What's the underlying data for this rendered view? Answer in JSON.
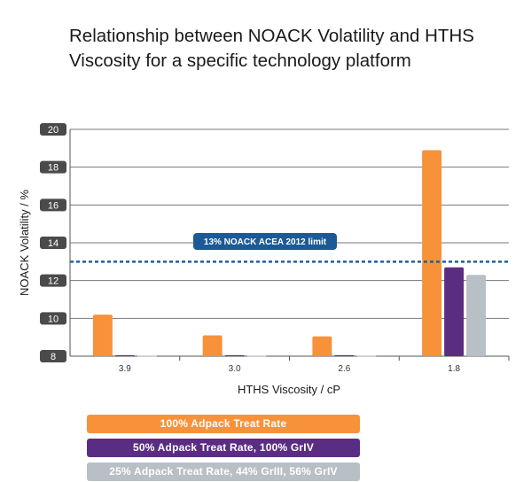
{
  "chart_data": {
    "type": "bar",
    "title": "Relationship between NOACK Volatility and HTHS Viscosity for a specific technology platform",
    "title_lines": [
      "Relationship between NOACK Volatility and HTHS",
      "Viscosity for a specific technology platform"
    ],
    "xlabel": "HTHS Viscosity / cP",
    "ylabel": "NOACK Volatility / %",
    "categories": [
      "3.9",
      "3.0",
      "2.6",
      "1.8"
    ],
    "ylim": [
      8,
      20
    ],
    "yticks": [
      "8",
      "10",
      "12",
      "14",
      "16",
      "18",
      "20"
    ],
    "grid": true,
    "legend_position": "bottom",
    "series": [
      {
        "name": "100% Adpack Treat Rate",
        "color": "#f7923a",
        "values": [
          10.2,
          9.1,
          9.05,
          18.9
        ]
      },
      {
        "name": "50% Adpack Treat Rate, 100% GrIV",
        "color": "#5b2d82",
        "values": [
          8.05,
          8.05,
          8.05,
          12.7
        ]
      },
      {
        "name": "25% Adpack Treat Rate, 44% GrIII, 56% GrIV",
        "color": "#b8bfc5",
        "values": [
          8.03,
          8.03,
          8.03,
          12.3
        ]
      }
    ],
    "reference_line": {
      "value": 13,
      "label": "13% NOACK ACEA 2012 limit",
      "color": "#1f5fa0"
    }
  }
}
